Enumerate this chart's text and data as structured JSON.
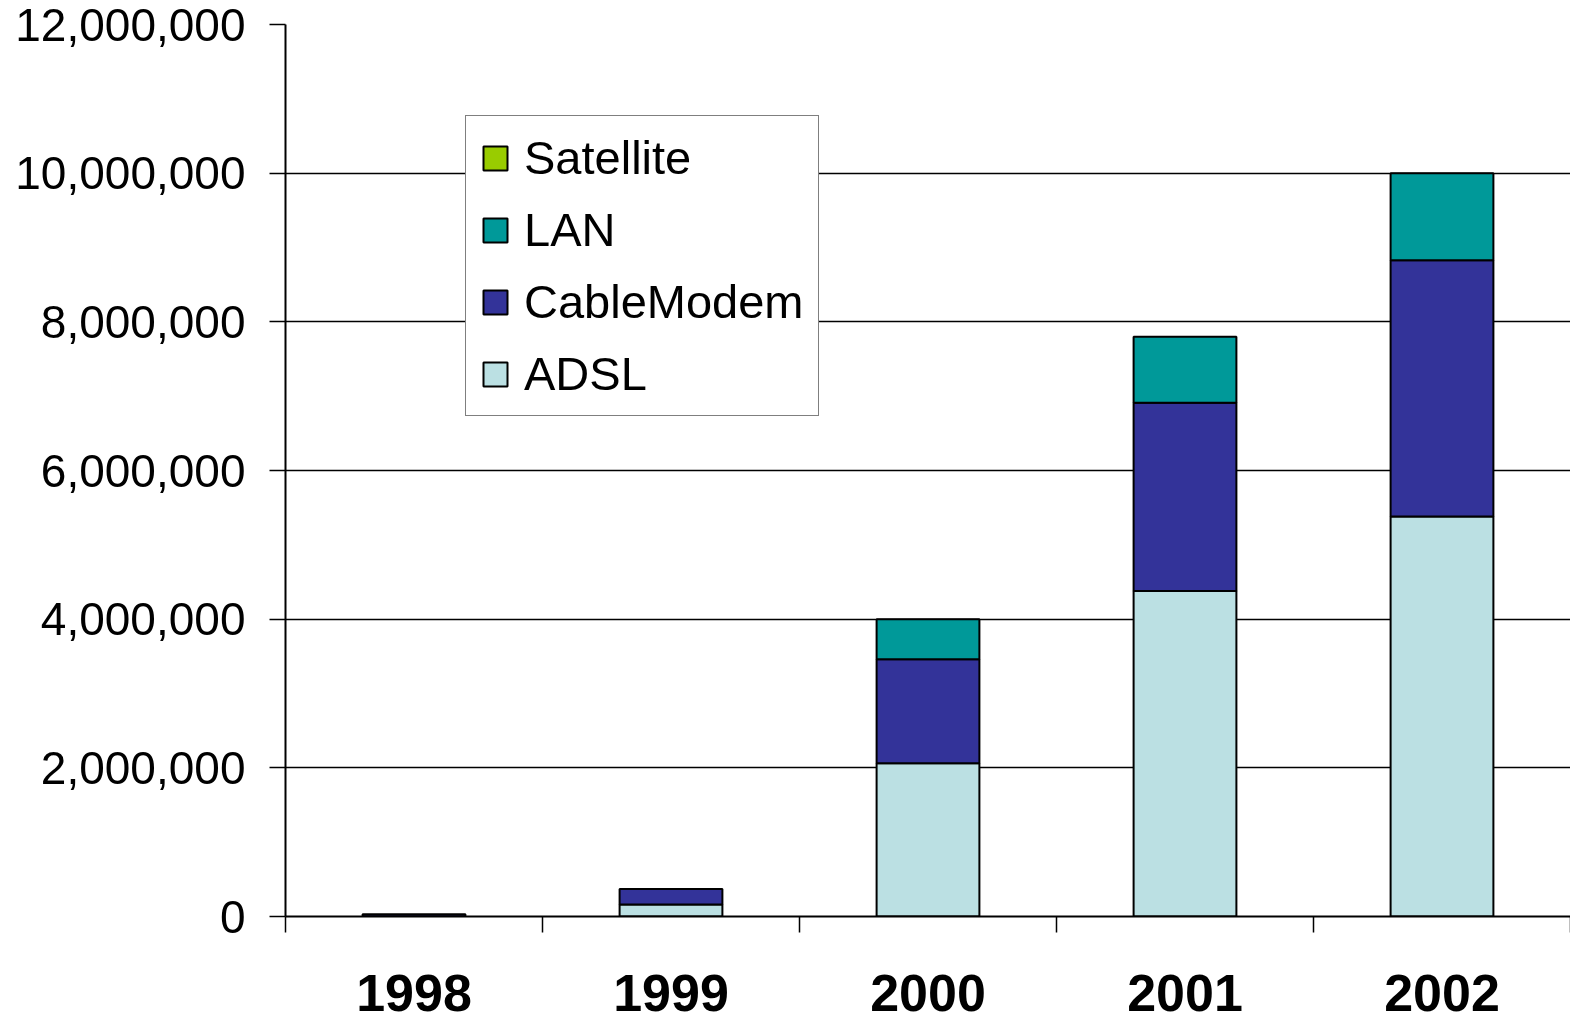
{
  "chart_data": {
    "type": "bar",
    "stacked": true,
    "categories": [
      "1998",
      "1999",
      "2000",
      "2001",
      "2002"
    ],
    "series": [
      {
        "name": "ADSL",
        "color": "#bbe0e3",
        "values": [
          null,
          160000,
          2060000,
          4380000,
          5380000
        ]
      },
      {
        "name": "CableModem",
        "color": "#333399",
        "values": [
          30000,
          210000,
          1400000,
          2530000,
          3450000
        ]
      },
      {
        "name": "LAN",
        "color": "#009999",
        "values": [
          null,
          null,
          540000,
          890000,
          1170000
        ]
      },
      {
        "name": "Satellite",
        "color": "#99cc00",
        "values": [
          null,
          null,
          null,
          null,
          null
        ]
      }
    ],
    "ylim": [
      0,
      12000000
    ],
    "yticks": [
      {
        "value": 0,
        "label": "0"
      },
      {
        "value": 2000000,
        "label": "2,000,000"
      },
      {
        "value": 4000000,
        "label": "4,000,000"
      },
      {
        "value": 6000000,
        "label": "6,000,000"
      },
      {
        "value": 8000000,
        "label": "8,000,000"
      },
      {
        "value": 10000000,
        "label": "10,000,000"
      },
      {
        "value": 12000000,
        "label": "12,000,000"
      }
    ],
    "grid": "y",
    "legend": "top left"
  }
}
